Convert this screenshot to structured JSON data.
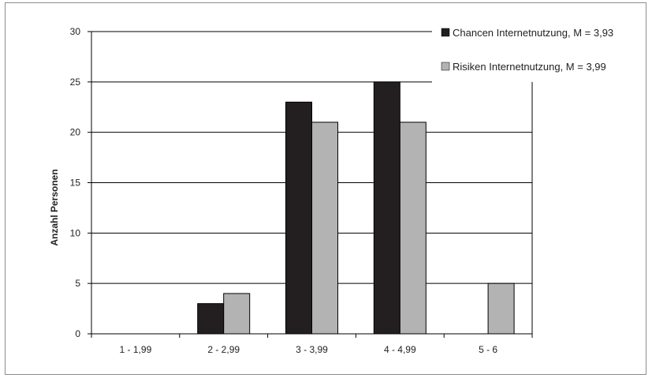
{
  "chart_data": {
    "type": "bar",
    "categories": [
      "1 - 1,99",
      "2 - 2,99",
      "3 - 3,99",
      "4 - 4,99",
      "5 - 6"
    ],
    "series": [
      {
        "name": "Chancen Internetnutzung, M = 3,93",
        "values": [
          0,
          3,
          23,
          25,
          0
        ],
        "color": "#231f20"
      },
      {
        "name": "Risiken Internetnutzung, M = 3,99",
        "values": [
          0,
          4,
          21,
          21,
          5
        ],
        "color": "#b3b3b3"
      }
    ],
    "title": "",
    "xlabel": "",
    "ylabel": "Anzahl Personen",
    "ylim": [
      0,
      30
    ],
    "yticks": [
      0,
      5,
      10,
      15,
      20,
      25,
      30
    ],
    "grid": true,
    "legend_position": "top-right"
  }
}
